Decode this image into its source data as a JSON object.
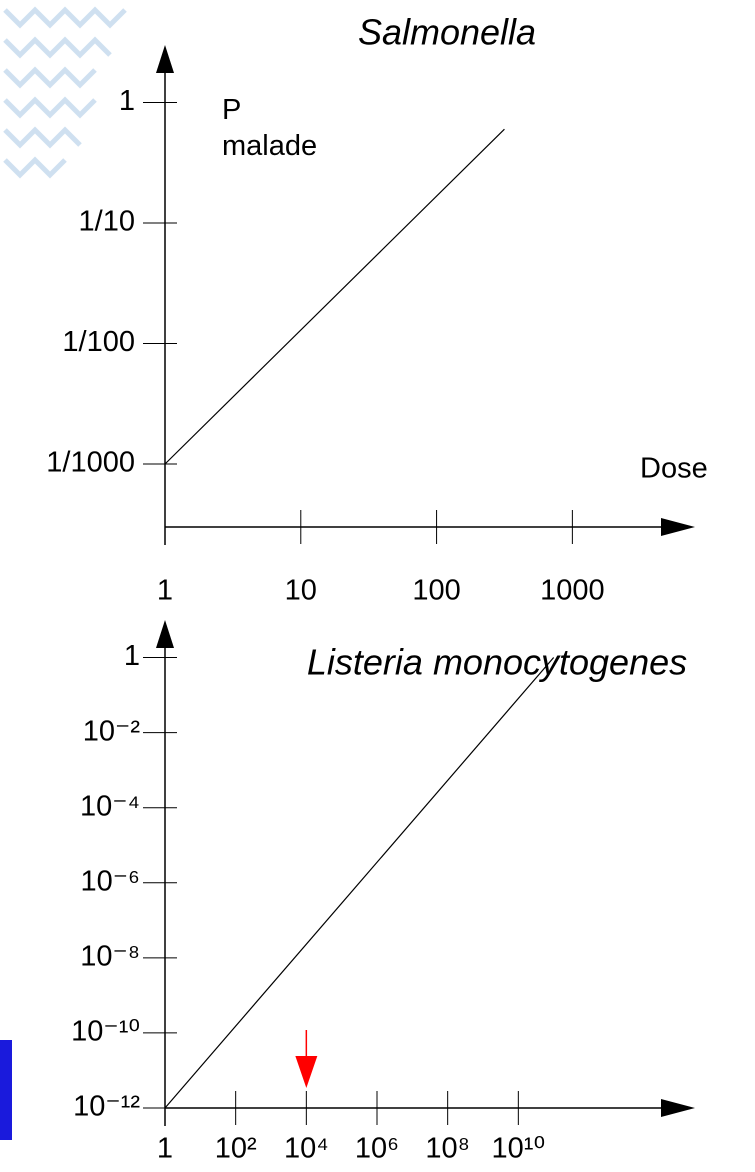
{
  "chart_data": [
    {
      "type": "line",
      "title": "Salmonella",
      "ylabel": "P malade",
      "xlabel": "Dose",
      "log_scale": true,
      "color": "#000000",
      "x": [
        1,
        316
      ],
      "values": [
        0.001,
        0.6
      ],
      "xlim": [
        1,
        8000
      ],
      "ylim": [
        0.0003,
        3
      ],
      "xticks": [
        1,
        10,
        100,
        1000
      ],
      "yticks": [
        {
          "value": 0.001,
          "label": "1/1000"
        },
        {
          "value": 0.01,
          "label": "1/100"
        },
        {
          "value": 0.1,
          "label": "1/10"
        },
        1
      ]
    },
    {
      "type": "line",
      "title": "Listeria monocytogenes",
      "log_scale": true,
      "color": "#000000",
      "x": [
        1,
        100000000000
      ],
      "values": [
        1e-12,
        1
      ],
      "arrow_x": 10000,
      "arrow_color": "#ff0000",
      "xlim": [
        1,
        1000000000000000.0
      ],
      "ylim": [
        1e-12,
        10
      ],
      "xticks": [
        1,
        {
          "value": 100,
          "label": "10²"
        },
        {
          "value": 10000,
          "label": "10⁴"
        },
        {
          "value": 1000000,
          "label": "10⁶"
        },
        {
          "value": 100000000,
          "label": "10⁸"
        },
        {
          "value": 10000000000,
          "label": "10¹⁰"
        }
      ],
      "yticks": [
        {
          "value": 1e-12,
          "label": "10⁻¹²"
        },
        {
          "value": 1e-10,
          "label": "10⁻¹⁰"
        },
        {
          "value": 1e-08,
          "label": "10⁻⁸"
        },
        {
          "value": 1e-06,
          "label": "10⁻⁶"
        },
        {
          "value": 0.0001,
          "label": "10⁻⁴"
        },
        {
          "value": 0.01,
          "label": "10⁻²"
        },
        1
      ]
    }
  ]
}
